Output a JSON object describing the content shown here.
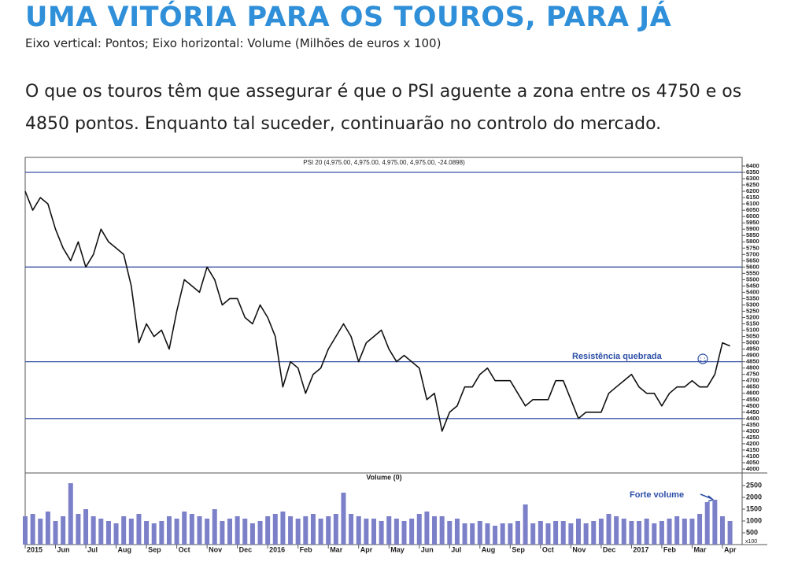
{
  "header": {
    "title": "UMA VITÓRIA PARA OS TOUROS, PARA JÁ",
    "subtitle": "Eixo vertical: Pontos; Eixo horizontal: Volume (Milhões de euros x 100)",
    "text": "O que os touros têm que assegurar é que o PSI aguente a zona entre os 4750 e os 4850 pontos. Enquanto tal suceder, continuarão no controlo do mercado."
  },
  "chart_data": [
    {
      "type": "line",
      "title": "PSI 20 (4,975.00, 4,975.00, 4,975.00, 4,975.00, -24.0898)",
      "annotation": "Resistência quebrada",
      "color": "#111111",
      "level_color": "#3a52a5",
      "categories": [
        "2015",
        null,
        null,
        null,
        "Jun",
        null,
        null,
        null,
        "Jul",
        null,
        null,
        null,
        "Aug",
        null,
        null,
        null,
        "Sep",
        null,
        null,
        null,
        "Oct",
        null,
        null,
        null,
        "Nov",
        null,
        null,
        null,
        "Dec",
        null,
        null,
        null,
        "2016",
        null,
        null,
        null,
        "Feb",
        null,
        null,
        null,
        "Mar",
        null,
        null,
        null,
        "Apr",
        null,
        null,
        null,
        "May",
        null,
        null,
        null,
        "Jun",
        null,
        null,
        null,
        "Jul",
        null,
        null,
        null,
        "Aug",
        null,
        null,
        null,
        "Sep",
        null,
        null,
        null,
        "Oct",
        null,
        null,
        null,
        "Nov",
        null,
        null,
        null,
        "Dec",
        null,
        null,
        null,
        "2017",
        null,
        null,
        null,
        "Feb",
        null,
        null,
        null,
        "Mar",
        null,
        null,
        null,
        "Apr",
        null
      ],
      "values": [
        6200,
        6050,
        6150,
        6100,
        5900,
        5750,
        5650,
        5800,
        5600,
        5700,
        5900,
        5800,
        5750,
        5700,
        5450,
        5000,
        5150,
        5050,
        5100,
        4950,
        5250,
        5500,
        5450,
        5400,
        5600,
        5500,
        5300,
        5350,
        5350,
        5200,
        5150,
        5300,
        5200,
        5050,
        4650,
        4850,
        4800,
        4600,
        4750,
        4800,
        4950,
        5050,
        5150,
        5050,
        4850,
        5000,
        5050,
        5100,
        4950,
        4850,
        4900,
        4850,
        4800,
        4550,
        4600,
        4300,
        4450,
        4500,
        4650,
        4650,
        4750,
        4800,
        4700,
        4700,
        4700,
        4600,
        4500,
        4550,
        4550,
        4550,
        4700,
        4700,
        4550,
        4400,
        4450,
        4450,
        4450,
        4600,
        4650,
        4700,
        4750,
        4650,
        4600,
        4600,
        4500,
        4600,
        4650,
        4650,
        4700,
        4650,
        4650,
        4750,
        5000,
        4975
      ],
      "levels": [
        6350,
        5600,
        4850,
        4400
      ],
      "ylim": [
        4000,
        6400
      ],
      "yticks": [
        4000,
        4050,
        4100,
        4150,
        4200,
        4250,
        4300,
        4350,
        4400,
        4450,
        4500,
        4550,
        4600,
        4650,
        4700,
        4750,
        4800,
        4850,
        4900,
        4950,
        5000,
        5050,
        5100,
        5150,
        5200,
        5250,
        5300,
        5350,
        5400,
        5450,
        5500,
        5550,
        5600,
        5650,
        5700,
        5750,
        5800,
        5850,
        5900,
        5950,
        6000,
        6050,
        6100,
        6150,
        6200,
        6250,
        6300,
        6350,
        6400
      ]
    },
    {
      "type": "bar",
      "title": "Volume (0)",
      "annotation": "Forte volume",
      "unit": "x100",
      "color": "#7c80c8",
      "values": [
        1200,
        1300,
        1100,
        1400,
        1000,
        1200,
        2600,
        1300,
        1500,
        1200,
        1100,
        1000,
        900,
        1200,
        1100,
        1300,
        1000,
        900,
        1000,
        1200,
        1100,
        1400,
        1300,
        1200,
        1100,
        1500,
        1000,
        1100,
        1200,
        1100,
        900,
        1000,
        1200,
        1300,
        1400,
        1200,
        1100,
        1200,
        1300,
        1100,
        1200,
        1300,
        2200,
        1300,
        1200,
        1100,
        1100,
        1000,
        1200,
        1100,
        1000,
        1100,
        1300,
        1400,
        1200,
        1200,
        1000,
        1100,
        900,
        900,
        1000,
        900,
        800,
        900,
        900,
        1000,
        1700,
        900,
        1000,
        900,
        1000,
        1000,
        900,
        1100,
        900,
        1000,
        1100,
        1300,
        1200,
        1100,
        1000,
        1000,
        1100,
        900,
        1000,
        1100,
        1200,
        1100,
        1100,
        1300,
        1800,
        1900,
        1200,
        1000
      ],
      "ylim": [
        0,
        3000
      ],
      "yticks": [
        500,
        1000,
        1500,
        2000,
        2500
      ]
    }
  ]
}
